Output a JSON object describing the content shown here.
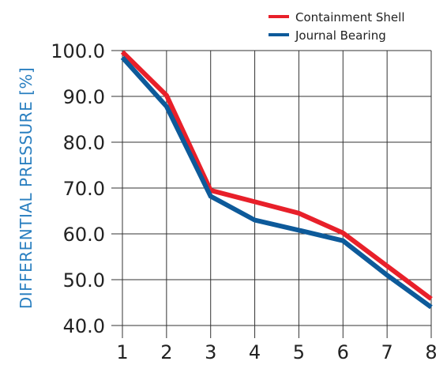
{
  "chart_data": {
    "type": "line",
    "title": "",
    "xlabel": "",
    "ylabel": "DIFFERENTIAL PRESSURE [%]",
    "x": [
      1,
      2,
      3,
      4,
      5,
      6,
      7,
      8
    ],
    "xlim": [
      1,
      8
    ],
    "ylim": [
      40,
      100
    ],
    "yticks": [
      "40.0",
      "50.0",
      "60.0",
      "70.0",
      "80.0",
      "90.0",
      "100.0"
    ],
    "xticks": [
      "1",
      "2",
      "3",
      "4",
      "5",
      "6",
      "7",
      "8"
    ],
    "grid": true,
    "legend_position": "top-right",
    "series": [
      {
        "name": "Containment Shell",
        "color": "#e8202a",
        "values": [
          99.7,
          90.2,
          69.5,
          67.0,
          64.5,
          60.2,
          53.0,
          45.8
        ]
      },
      {
        "name": "Journal Bearing",
        "color": "#0d5a9a",
        "values": [
          98.5,
          87.8,
          68.2,
          63.0,
          60.8,
          58.5,
          51.0,
          44.0
        ]
      }
    ]
  }
}
